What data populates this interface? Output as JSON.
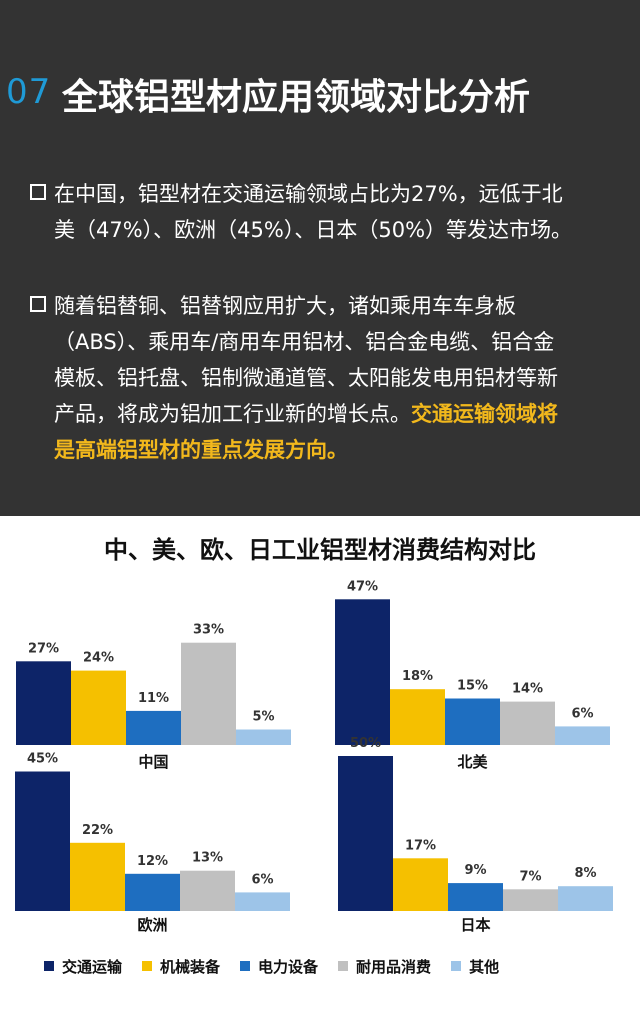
{
  "header": {
    "number": "07",
    "title": "全球铝型材应用领域对比分析"
  },
  "para1": {
    "lines": [
      "在中国，铝型材在交通运输领域占比为27%，远低于北",
      "美（47%）、欧洲（45%）、日本（50%）等发达市场。"
    ]
  },
  "para2": {
    "lines": [
      "随着铝替铜、铝替钢应用扩大，诸如乘用车车身板",
      "（ABS）、乘用车/商用车用铝材、铝合金电缆、铝合金",
      "模板、铝托盘、铝制微通道管、太阳能发电用铝材等新",
      "产品，将成为铝加工行业新的增长点。"
    ],
    "highlight1": "交通运输领域将",
    "highlight2": "是高端铝型材的重点发展方向。"
  },
  "chart_data": {
    "type": "bar",
    "title": "中、美、欧、日工业铝型材消费结构对比",
    "categories": [
      "交通运输",
      "机械装备",
      "电力设备",
      "耐用品消费",
      "其他"
    ],
    "colors": [
      "#0d2468",
      "#f5c000",
      "#1e6ec0",
      "#c0c0c0",
      "#9dc4e8"
    ],
    "panels": [
      {
        "name": "中国",
        "values": [
          27,
          24,
          11,
          33,
          5
        ]
      },
      {
        "name": "北美",
        "values": [
          47,
          18,
          15,
          14,
          6
        ]
      },
      {
        "name": "欧洲",
        "values": [
          45,
          22,
          12,
          13,
          6
        ]
      },
      {
        "name": "日本",
        "values": [
          50,
          17,
          9,
          7,
          8
        ]
      }
    ],
    "legend_position": "bottom"
  }
}
